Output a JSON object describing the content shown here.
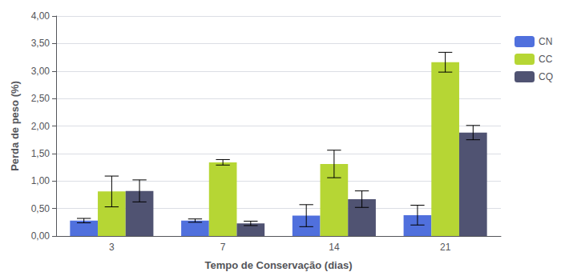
{
  "chart_data": {
    "type": "bar",
    "categories": [
      "3",
      "7",
      "14",
      "21"
    ],
    "series": [
      {
        "name": "CN",
        "values": [
          0.28,
          0.28,
          0.37,
          0.38
        ],
        "errors": [
          0.04,
          0.03,
          0.2,
          0.18
        ]
      },
      {
        "name": "CC",
        "values": [
          0.81,
          1.34,
          1.31,
          3.16
        ],
        "errors": [
          0.28,
          0.05,
          0.25,
          0.18
        ]
      },
      {
        "name": "CQ",
        "values": [
          0.82,
          0.23,
          0.67,
          1.88
        ],
        "errors": [
          0.2,
          0.04,
          0.15,
          0.13
        ]
      }
    ],
    "xlabel": "Tempo de Conservação (dias)",
    "ylabel": "Perda de peso (%)",
    "ylim": [
      0.0,
      4.0
    ],
    "yticks": [
      {
        "value": 0.0,
        "label": "0,00"
      },
      {
        "value": 0.5,
        "label": "0,50"
      },
      {
        "value": 1.0,
        "label": "1,00"
      },
      {
        "value": 1.5,
        "label": "1,50"
      },
      {
        "value": 2.0,
        "label": "2,00"
      },
      {
        "value": 2.5,
        "label": "2,50"
      },
      {
        "value": 3.0,
        "label": "3,00"
      },
      {
        "value": 3.5,
        "label": "3,50"
      },
      {
        "value": 4.0,
        "label": "4,00"
      }
    ],
    "grid": true,
    "legend": "right"
  }
}
